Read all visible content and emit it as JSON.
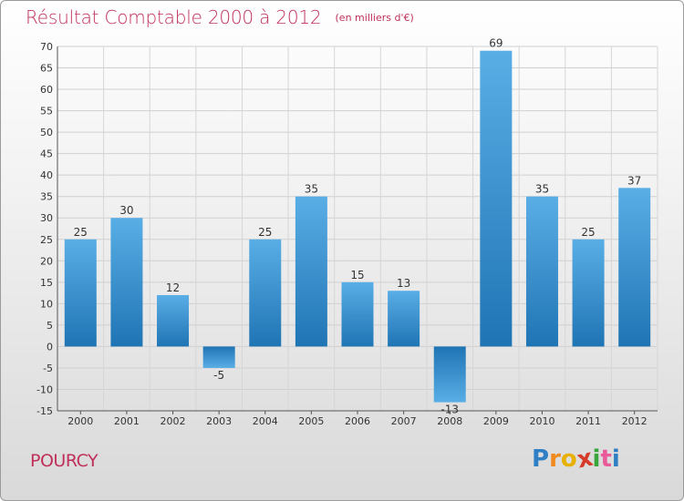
{
  "chart_data": {
    "type": "bar",
    "title": "Résultat Comptable 2000 à 2012",
    "subtitle": "(en milliers d'€)",
    "categories": [
      "2000",
      "2001",
      "2002",
      "2003",
      "2004",
      "2005",
      "2006",
      "2007",
      "2008",
      "2009",
      "2010",
      "2011",
      "2012"
    ],
    "values": [
      25,
      30,
      12,
      -5,
      25,
      35,
      15,
      13,
      -13,
      69,
      35,
      25,
      37
    ],
    "value_labels": [
      "25",
      "30",
      "12",
      "-5",
      "25",
      "35",
      "15",
      "13",
      "-13",
      "69",
      "35",
      "25",
      "37"
    ],
    "ylim": [
      -15,
      70
    ],
    "yticks": [
      -15,
      -10,
      -5,
      0,
      5,
      10,
      15,
      20,
      25,
      30,
      35,
      40,
      45,
      50,
      55,
      60,
      65,
      70
    ],
    "grid": true,
    "colors": {
      "bar_light": "#5aaee6",
      "bar_dark": "#1f74b4",
      "title": "#c0305a"
    }
  },
  "footer": {
    "commune": "POURCY",
    "logo_letters": [
      "P",
      "r",
      "o",
      "x",
      "i",
      "t",
      "i"
    ],
    "logo_colors": [
      "#2f7fc4",
      "#f18a1c",
      "#e8b000",
      "#d63b2a",
      "#3aa53a",
      "#e85a9a",
      "#2f7fc4"
    ]
  }
}
